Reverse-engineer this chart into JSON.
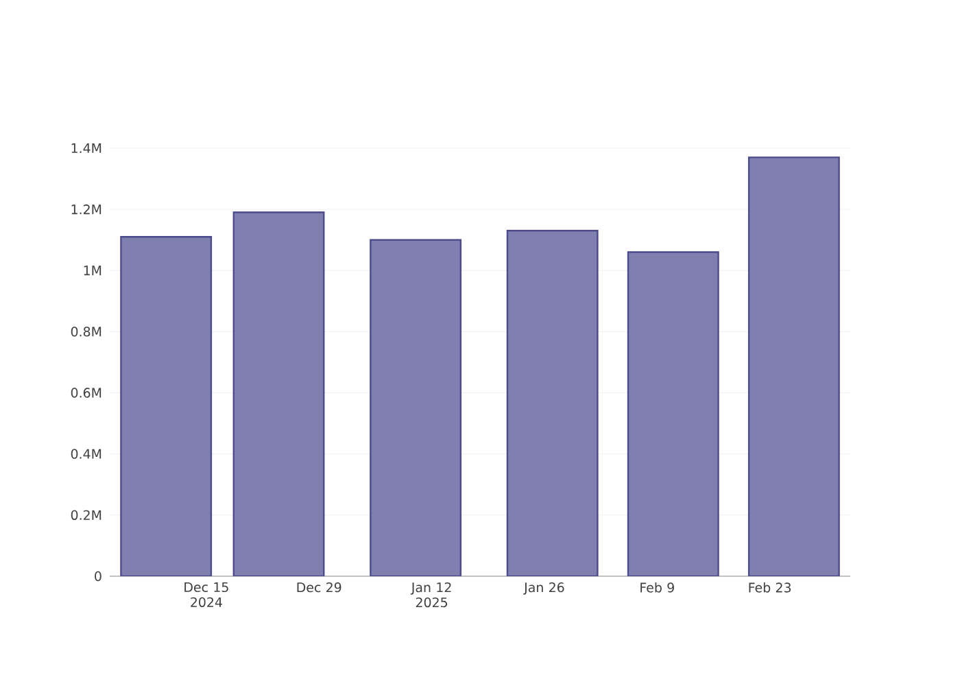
{
  "chart_data": {
    "type": "bar",
    "x": [
      "2024-12-10",
      "2024-12-24",
      "2025-01-10",
      "2025-01-27",
      "2025-02-11",
      "2025-02-26"
    ],
    "values": [
      1110000,
      1190000,
      1100000,
      1130000,
      1060000,
      1370000
    ],
    "color": "#7f7fb0",
    "xlim": [
      "2024-12-03",
      "2025-03-05"
    ],
    "xticks": [
      {
        "value": "2024-12-15",
        "label": "Dec 15 2024"
      },
      {
        "value": "2024-12-29",
        "label": "Dec 29"
      },
      {
        "value": "2025-01-12",
        "label": "Jan 12 2025"
      },
      {
        "value": "2025-01-26",
        "label": "Jan 26"
      },
      {
        "value": "2025-02-09",
        "label": "Feb 9"
      },
      {
        "value": "2025-02-23",
        "label": "Feb 23"
      }
    ],
    "ylim": [
      0,
      1400000
    ],
    "yticks": [
      0,
      {
        "value": 200000,
        "label": "0.2M"
      },
      {
        "value": 400000,
        "label": "0.4M"
      },
      {
        "value": 600000,
        "label": "0.6M"
      },
      {
        "value": 800000,
        "label": "0.8M"
      },
      {
        "value": 1000000,
        "label": "1M"
      },
      {
        "value": 1200000,
        "label": "1.2M"
      },
      {
        "value": 1400000,
        "label": "1.4M"
      }
    ],
    "grid": "y"
  }
}
